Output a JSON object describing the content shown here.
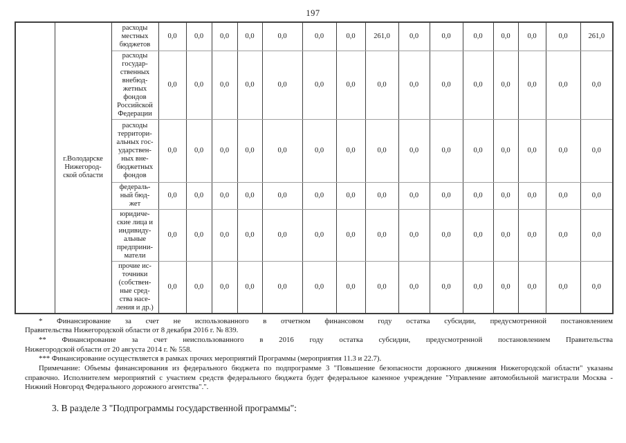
{
  "page_number": "197",
  "table": {
    "region_label": "г.Володарске\nНижегород-\nской области",
    "rows": [
      {
        "label": "расходы\nместных\nбюджетов",
        "values": [
          "0,0",
          "0,0",
          "0,0",
          "0,0",
          "0,0",
          "0,0",
          "0,0",
          "261,0",
          "0,0",
          "0,0",
          "0,0",
          "0,0",
          "0,0",
          "0,0",
          "261,0"
        ]
      },
      {
        "label": "расходы\nгосудар-\nственных\nвнебюд-\nжетных\nфондов\nРоссийской\nФедерации",
        "values": [
          "0,0",
          "0,0",
          "0,0",
          "0,0",
          "0,0",
          "0,0",
          "0,0",
          "0,0",
          "0,0",
          "0,0",
          "0,0",
          "0,0",
          "0,0",
          "0,0",
          "0,0"
        ]
      },
      {
        "label": "расходы\nтерритори-\nальных гос-\nударствен-\nных вне-\nбюджетных\nфондов",
        "values": [
          "0,0",
          "0,0",
          "0,0",
          "0,0",
          "0,0",
          "0,0",
          "0,0",
          "0,0",
          "0,0",
          "0,0",
          "0,0",
          "0,0",
          "0,0",
          "0,0",
          "0,0"
        ]
      },
      {
        "label": "федераль-\nный бюд-\nжет",
        "values": [
          "0,0",
          "0,0",
          "0,0",
          "0,0",
          "0,0",
          "0,0",
          "0,0",
          "0,0",
          "0,0",
          "0,0",
          "0,0",
          "0,0",
          "0,0",
          "0,0",
          "0,0"
        ]
      },
      {
        "label": "юридиче-\nские лица и\nиндивиду-\nальные\nпредприни-\nматели",
        "values": [
          "0,0",
          "0,0",
          "0,0",
          "0,0",
          "0,0",
          "0,0",
          "0,0",
          "0,0",
          "0,0",
          "0,0",
          "0,0",
          "0,0",
          "0,0",
          "0,0",
          "0,0"
        ]
      },
      {
        "label": "прочие ис-\nточники\n(собствен-\nные сред-\nства насе-\nления и др.)",
        "values": [
          "0,0",
          "0,0",
          "0,0",
          "0,0",
          "0,0",
          "0,0",
          "0,0",
          "0,0",
          "0,0",
          "0,0",
          "0,0",
          "0,0",
          "0,0",
          "0,0",
          "0,0"
        ]
      }
    ]
  },
  "footnotes": [
    {
      "lines": [
        {
          "text": "* Финансирование за счет не использованного в отчетном финансовом году остатка субсидии, предусмотренной постановлением",
          "indent": true,
          "justify": true
        },
        {
          "text": "Правительства Нижегородской области от 8 декабря 2016 г. № 839.",
          "indent": false,
          "justify": false
        }
      ]
    },
    {
      "lines": [
        {
          "text": "** Финансирование за счет неиспользованного в 2016 году остатка субсидии, предусмотренной постановлением Правительства",
          "indent": true,
          "justify": true
        },
        {
          "text": "Нижегородской области от 20 августа 2014 г. № 558.",
          "indent": false,
          "justify": false
        }
      ]
    },
    {
      "lines": [
        {
          "text": "*** Финансирование осуществляется в рамках прочих мероприятий Программы (мероприятия 11.3 и 22.7).",
          "indent": true,
          "justify": false
        }
      ]
    },
    {
      "lines": [
        {
          "text": "Примечание: Объемы финансирования из федерального бюджета по подпрограмме 3 \"Повышение безопасности дорожного движения Нижегородской области\" указаны",
          "indent": true,
          "justify": true
        },
        {
          "text": "справочно. Исполнителем мероприятий с участием средств федерального бюджета будет федеральное казенное учреждение \"Управление автомобильной магистрали Москва -",
          "indent": false,
          "justify": true
        },
        {
          "text": "Нижний Новгород Федерального дорожного агентства\".\".",
          "indent": false,
          "justify": false
        }
      ]
    }
  ],
  "closing": "3. В разделе 3 \"Подпрограммы государственной программы\":"
}
